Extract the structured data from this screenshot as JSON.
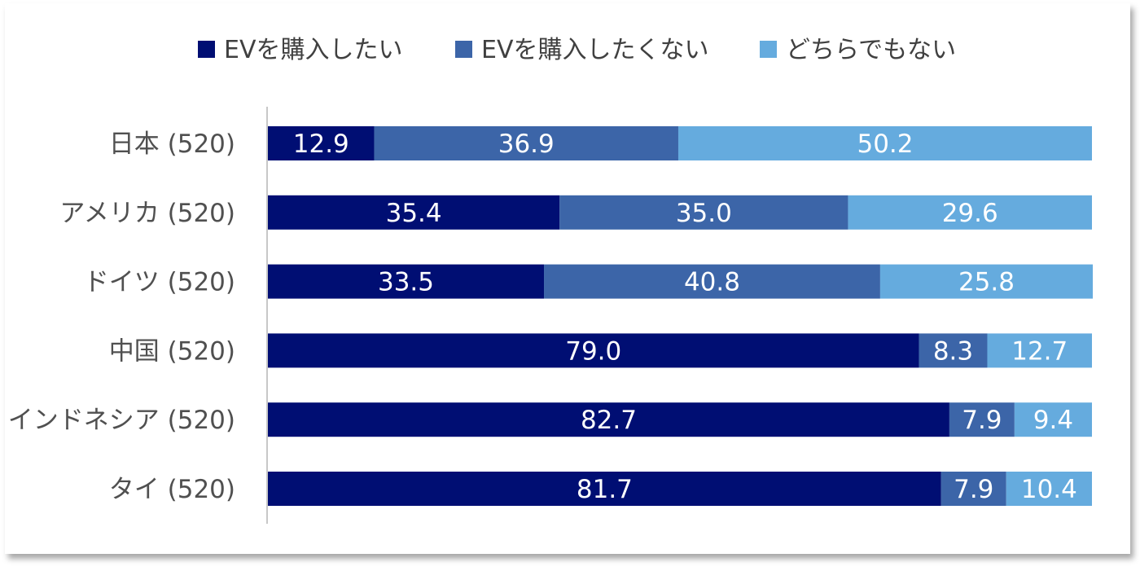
{
  "chart_data": {
    "type": "bar",
    "orientation": "horizontal",
    "stacked": true,
    "percent": true,
    "categories": [
      "日本 (520)",
      "アメリカ (520)",
      "ドイツ (520)",
      "中国 (520)",
      "インドネシア (520)",
      "タイ (520)"
    ],
    "series": [
      {
        "name": "EVを購入したい",
        "color": "#000e73",
        "values": [
          12.9,
          35.4,
          33.5,
          79.0,
          82.7,
          81.7
        ],
        "labels": [
          "12.9",
          "35.4",
          "33.5",
          "79.0",
          "82.7",
          "81.7"
        ]
      },
      {
        "name": "EVを購入したくない",
        "color": "#3c65a8",
        "values": [
          36.9,
          35.0,
          40.8,
          8.3,
          7.9,
          7.9
        ],
        "labels": [
          "36.9",
          "35.0",
          "40.8",
          "8.3",
          "7.9",
          "7.9"
        ]
      },
      {
        "name": "どちらでもない",
        "color": "#65abde",
        "values": [
          50.2,
          29.6,
          25.8,
          12.7,
          9.4,
          10.4
        ],
        "labels": [
          "50.2",
          "29.6",
          "25.8",
          "12.7",
          "9.4",
          "10.4"
        ]
      }
    ],
    "xlim": [
      0,
      100
    ],
    "legend_position": "top-center",
    "grid": false
  }
}
